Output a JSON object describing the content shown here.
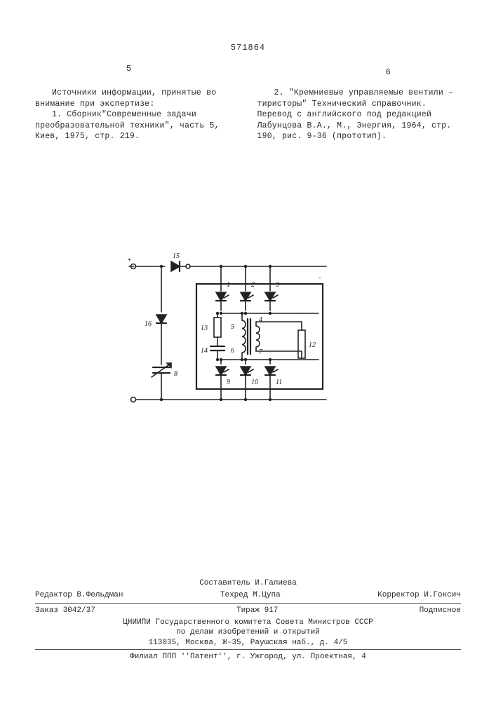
{
  "doc_number": "571864",
  "page_left": "5",
  "page_right": "6",
  "left_col": {
    "p1": "Источники информации, принятые во внимание при экспертизе:",
    "p2": "1. Сборник\"Современные задачи преобразовательной техники\", часть 5, Киев, 1975, стр. 219."
  },
  "right_col": {
    "p1": "2. \"Кремниевые управляемые вентили – тиристоры\" Технический справочник. Перевод с английского под редакцией Лабунцова В.А., М., Энергия, 1964, стр. 190, рис. 9-36 (прототип)."
  },
  "diagram": {
    "stroke": "#222222",
    "stroke_width": 1.6,
    "stroke_bold": 2.2,
    "labels": {
      "15": "15",
      "16": "16",
      "13": "13",
      "14": "14",
      "1": "1",
      "2": "2",
      "3": "3",
      "4": "4",
      "5": "5",
      "6": "6",
      "7": "7",
      "8": "8",
      "9": "9",
      "10": "10",
      "11": "11",
      "12": "12"
    },
    "label_fontsize": 10
  },
  "colophon": {
    "composer": "Составитель И.Галиева",
    "editor": "Редактор В.Фельдман",
    "techred": "Техред М.Цупа",
    "corrector": "Корректор И.Гоксич",
    "order": "Заказ 3042/37",
    "tirazh": "Тираж 917",
    "subscribed": "Подписное",
    "org1": "ЦНИИПИ Государственного комитета Совета Министров СССР",
    "org2": "по делам изобретений и открытий",
    "addr": "113035, Москва, Ж-35, Раушская наб., д. 4/5",
    "printer": "Филиал ППП ''Патент'', г. Ужгород, ул. Проектная, 4"
  }
}
